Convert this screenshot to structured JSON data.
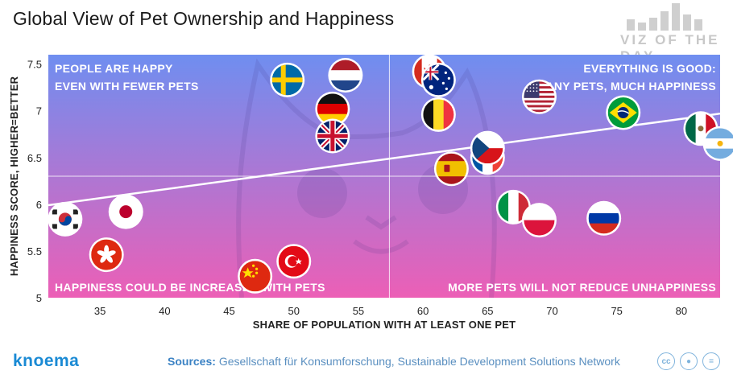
{
  "title": "Global View of Pet Ownership and Happiness",
  "logo": {
    "text": "VIZ OF THE DAY"
  },
  "footer": {
    "brand": "knoema",
    "sources_label": "Sources:",
    "sources_text": "Gesellschaft für Konsumforschung, Sustainable Development Solutions Network",
    "license_icons": [
      "cc-icon",
      "by-icon",
      "nd-icon"
    ]
  },
  "quadrants": {
    "top_left": [
      "PEOPLE ARE HAPPY",
      "EVEN WITH FEWER PETS"
    ],
    "top_right": [
      "EVERYTHING IS GOOD:",
      "MANY PETS, MUCH HAPPINESS"
    ],
    "bottom_left": "HAPPINESS COULD BE INCREASED WITH PETS",
    "bottom_right": "MORE PETS WILL NOT REDUCE UNHAPPINESS"
  },
  "colors": {
    "bg_top": "#6f8ef0",
    "bg_bottom": "#ec5fb6",
    "trend": "#ffffff"
  },
  "chart_data": {
    "type": "scatter",
    "xlabel": "SHARE OF POPULATION WITH AT LEAST ONE PET",
    "ylabel": "HAPPINESS SCORE, HIGHER=BETTER",
    "xlim": [
      31,
      83
    ],
    "ylim": [
      5,
      7.6
    ],
    "xticks": [
      35,
      40,
      45,
      50,
      55,
      60,
      65,
      70,
      75,
      80
    ],
    "yticks": [
      5,
      5.5,
      6,
      6.5,
      7,
      7.5
    ],
    "quadrant_split": {
      "x": 57.4,
      "y": 6.3
    },
    "trend": {
      "x": [
        31,
        83
      ],
      "y": [
        5.99,
        6.97
      ]
    },
    "points": [
      {
        "country": "South Korea",
        "flag": "korea",
        "x": 32.3,
        "y": 5.84
      },
      {
        "country": "Japan",
        "flag": "japan",
        "x": 37,
        "y": 5.92
      },
      {
        "country": "Hong Kong",
        "flag": "hongkong",
        "x": 35.5,
        "y": 5.46
      },
      {
        "country": "China",
        "flag": "china",
        "x": 47,
        "y": 5.23
      },
      {
        "country": "Turkey",
        "flag": "turkey",
        "x": 50,
        "y": 5.39
      },
      {
        "country": "Sweden",
        "flag": "sweden",
        "x": 49.5,
        "y": 7.33
      },
      {
        "country": "Netherlands",
        "flag": "netherlands",
        "x": 54,
        "y": 7.38
      },
      {
        "country": "Germany",
        "flag": "germany",
        "x": 53,
        "y": 7.02
      },
      {
        "country": "United Kingdom",
        "flag": "uk",
        "x": 53,
        "y": 6.73
      },
      {
        "country": "Canada",
        "flag": "canada",
        "x": 60.5,
        "y": 7.42
      },
      {
        "country": "Australia",
        "flag": "australia",
        "x": 61.2,
        "y": 7.33
      },
      {
        "country": "Belgium",
        "flag": "belgium",
        "x": 61.2,
        "y": 6.96
      },
      {
        "country": "Spain",
        "flag": "spain",
        "x": 62.2,
        "y": 6.38
      },
      {
        "country": "France",
        "flag": "france",
        "x": 65,
        "y": 6.5
      },
      {
        "country": "Czech Republic",
        "flag": "czech",
        "x": 65,
        "y": 6.6
      },
      {
        "country": "Italy",
        "flag": "italy",
        "x": 67,
        "y": 5.97
      },
      {
        "country": "Poland",
        "flag": "poland",
        "x": 69,
        "y": 5.83
      },
      {
        "country": "Russia",
        "flag": "russia",
        "x": 74,
        "y": 5.85
      },
      {
        "country": "USA",
        "flag": "usa",
        "x": 69,
        "y": 7.15
      },
      {
        "country": "Brazil",
        "flag": "brazil",
        "x": 75.5,
        "y": 6.98
      },
      {
        "country": "Mexico",
        "flag": "mexico",
        "x": 81.5,
        "y": 6.81
      },
      {
        "country": "Argentina",
        "flag": "argentina",
        "x": 83,
        "y": 6.65
      }
    ]
  }
}
